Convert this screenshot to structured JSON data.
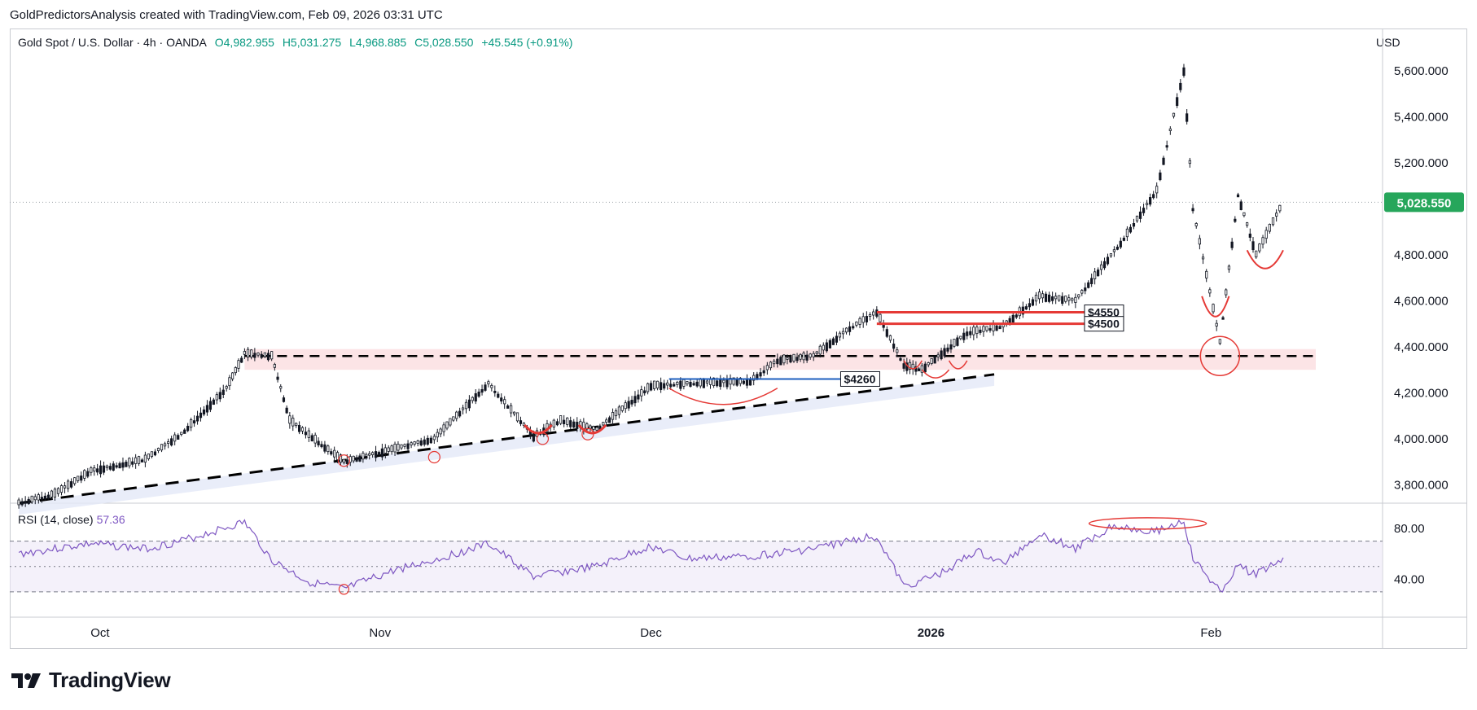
{
  "attribution": "GoldPredictorsAnalysis created with TradingView.com, Feb 09, 2026 03:31 UTC",
  "legend": {
    "symbol": "Gold Spot / U.S. Dollar · 4h · OANDA",
    "open": "O4,982.955",
    "high": "H5,031.275",
    "low": "L4,968.885",
    "close": "C5,028.550",
    "change": "+45.545 (+0.91%)"
  },
  "currency": "USD",
  "rsi": {
    "label": "RSI (14, close)",
    "value": "57.36"
  },
  "brand": {
    "name": "TradingView",
    "logo_icon": "tradingview-logo-icon"
  },
  "colors": {
    "up": "#089981",
    "price_badge": "#26a65b",
    "rsi": "#7e57c2",
    "annotation_red": "#e53935",
    "annotation_blue": "#1e5fbf"
  },
  "chart_data": {
    "type": "candlestick",
    "symbol": "XAUUSD",
    "interval": "4h",
    "x_ticks": [
      "Oct",
      "Nov",
      "Dec",
      "2026",
      "Feb"
    ],
    "y_ticks": [
      "5,600.000",
      "5,400.000",
      "5,200.000",
      "4,800.000",
      "4,600.000",
      "4,400.000",
      "4,200.000",
      "4,000.000",
      "3,800.000"
    ],
    "ylim": [
      3720,
      5660
    ],
    "last_price": 5028.55,
    "last_price_label": "5,028.550",
    "price_path": [
      {
        "t": "Sep 22",
        "p": 3720
      },
      {
        "t": "Sep 26",
        "p": 3760
      },
      {
        "t": "Sep 30",
        "p": 3860
      },
      {
        "t": "Oct 6",
        "p": 3910
      },
      {
        "t": "Oct 10",
        "p": 4020
      },
      {
        "t": "Oct 15",
        "p": 4220
      },
      {
        "t": "Oct 17",
        "p": 4370
      },
      {
        "t": "Oct 20",
        "p": 4360
      },
      {
        "t": "Oct 22",
        "p": 4080
      },
      {
        "t": "Oct 28",
        "p": 3900
      },
      {
        "t": "Nov 3",
        "p": 3960
      },
      {
        "t": "Nov 7",
        "p": 4000
      },
      {
        "t": "Nov 13",
        "p": 4240
      },
      {
        "t": "Nov 18",
        "p": 4010
      },
      {
        "t": "Nov 21",
        "p": 4080
      },
      {
        "t": "Nov 25",
        "p": 4040
      },
      {
        "t": "Dec 1",
        "p": 4230
      },
      {
        "t": "Dec 5",
        "p": 4240
      },
      {
        "t": "Dec 12",
        "p": 4250
      },
      {
        "t": "Dec 15",
        "p": 4340
      },
      {
        "t": "Dec 19",
        "p": 4360
      },
      {
        "t": "Dec 23",
        "p": 4480
      },
      {
        "t": "Dec 26",
        "p": 4550
      },
      {
        "t": "Dec 29",
        "p": 4320
      },
      {
        "t": "Dec 31",
        "p": 4300
      },
      {
        "t": "Jan 5",
        "p": 4460
      },
      {
        "t": "Jan 9",
        "p": 4490
      },
      {
        "t": "Jan 13",
        "p": 4620
      },
      {
        "t": "Jan 17",
        "p": 4600
      },
      {
        "t": "Jan 22",
        "p": 4850
      },
      {
        "t": "Jan 26",
        "p": 5080
      },
      {
        "t": "Jan 29",
        "p": 5600
      },
      {
        "t": "Jan 30",
        "p": 5000
      },
      {
        "t": "Feb 2",
        "p": 4420
      },
      {
        "t": "Feb 4",
        "p": 5060
      },
      {
        "t": "Feb 6",
        "p": 4800
      },
      {
        "t": "Feb 9",
        "p": 5028
      }
    ],
    "annotations": {
      "levels": [
        {
          "label": "$4550",
          "price": 4550
        },
        {
          "label": "$4500",
          "price": 4500
        },
        {
          "label": "$4260",
          "price": 4260
        }
      ],
      "resistance_line": 4360,
      "trendline": [
        {
          "t": "Sep 22",
          "p": 3720
        },
        {
          "t": "Jan 8",
          "p": 4280
        }
      ]
    },
    "rsi": {
      "period": 14,
      "ylim": [
        10,
        100
      ],
      "y_ticks": [
        "80.00",
        "40.00"
      ],
      "overbought": 70,
      "oversold": 30,
      "mid": 50,
      "path": [
        {
          "t": "Sep 22",
          "v": 60
        },
        {
          "t": "Sep 30",
          "v": 68
        },
        {
          "t": "Oct 6",
          "v": 64
        },
        {
          "t": "Oct 10",
          "v": 70
        },
        {
          "t": "Oct 17",
          "v": 85
        },
        {
          "t": "Oct 20",
          "v": 55
        },
        {
          "t": "Oct 24",
          "v": 38
        },
        {
          "t": "Oct 28",
          "v": 32
        },
        {
          "t": "Nov 3",
          "v": 48
        },
        {
          "t": "Nov 7",
          "v": 55
        },
        {
          "t": "Nov 13",
          "v": 68
        },
        {
          "t": "Nov 18",
          "v": 42
        },
        {
          "t": "Nov 25",
          "v": 50
        },
        {
          "t": "Dec 1",
          "v": 66
        },
        {
          "t": "Dec 5",
          "v": 56
        },
        {
          "t": "Dec 12",
          "v": 58
        },
        {
          "t": "Dec 19",
          "v": 64
        },
        {
          "t": "Dec 24",
          "v": 72
        },
        {
          "t": "Dec 26",
          "v": 74
        },
        {
          "t": "Dec 29",
          "v": 34
        },
        {
          "t": "Jan 2",
          "v": 44
        },
        {
          "t": "Jan 6",
          "v": 62
        },
        {
          "t": "Jan 9",
          "v": 52
        },
        {
          "t": "Jan 13",
          "v": 76
        },
        {
          "t": "Jan 17",
          "v": 64
        },
        {
          "t": "Jan 21",
          "v": 82
        },
        {
          "t": "Jan 26",
          "v": 78
        },
        {
          "t": "Jan 29",
          "v": 86
        },
        {
          "t": "Jan 30",
          "v": 56
        },
        {
          "t": "Feb 2",
          "v": 30
        },
        {
          "t": "Feb 4",
          "v": 50
        },
        {
          "t": "Feb 6",
          "v": 44
        },
        {
          "t": "Feb 9",
          "v": 57
        }
      ]
    }
  }
}
